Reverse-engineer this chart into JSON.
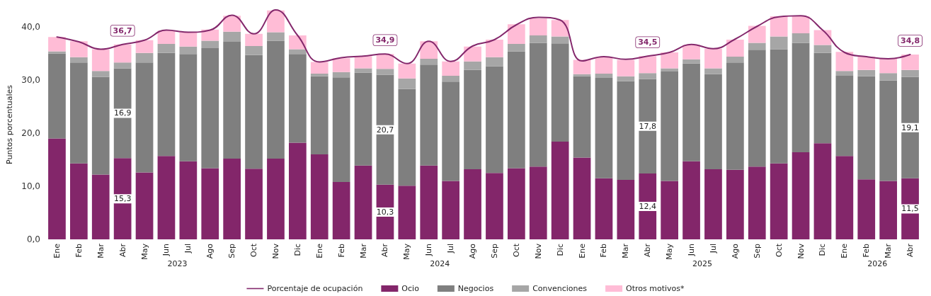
{
  "chart_data": {
    "type": "bar",
    "stacked": true,
    "ylabel": "Puntos porcentuales",
    "categories": [
      "Ene",
      "Feb",
      "Mar",
      "Abr",
      "May",
      "Jun",
      "Jul",
      "Ago",
      "Sep",
      "Oct",
      "Nov",
      "Dic",
      "Ene",
      "Feb",
      "Mar",
      "Abr",
      "May",
      "Jun",
      "Jul",
      "Ago",
      "Sep",
      "Oct",
      "Nov",
      "Dic",
      "Ene",
      "Feb",
      "Mar",
      "Abr",
      "May",
      "Jun",
      "Jul",
      "Ago",
      "Sep",
      "Oct",
      "Nov",
      "Dic",
      "Ene",
      "Feb",
      "Mar",
      "Abr"
    ],
    "series": [
      {
        "name": "Porcentaje de ocupación",
        "type": "line",
        "color": "#84286c",
        "values": [
          38.1,
          37.2,
          35.8,
          36.7,
          37.5,
          39.4,
          39.0,
          39.4,
          42.2,
          38.7,
          43.2,
          38.4,
          33.4,
          34.2,
          34.5,
          34.9,
          33.1,
          37.3,
          33.5,
          36.4,
          37.6,
          40.4,
          41.8,
          41.3,
          33.6,
          34.4,
          33.9,
          34.5,
          35.2,
          36.7,
          35.9,
          37.7,
          40.1,
          41.9,
          42.1,
          39.4,
          35.2,
          34.4,
          34.0,
          34.8
        ],
        "value_labels": [
          null,
          null,
          null,
          "36,7",
          null,
          null,
          null,
          null,
          null,
          null,
          null,
          null,
          null,
          null,
          null,
          "34,9",
          null,
          null,
          null,
          null,
          null,
          null,
          null,
          null,
          null,
          null,
          null,
          "34,5",
          null,
          null,
          null,
          null,
          null,
          null,
          null,
          null,
          null,
          null,
          null,
          "34,8"
        ]
      },
      {
        "name": "Ocio",
        "color": "#83266a",
        "values": [
          19.0,
          14.3,
          12.2,
          15.3,
          12.6,
          15.7,
          14.7,
          13.4,
          15.2,
          13.3,
          15.2,
          18.2,
          16.0,
          10.8,
          13.9,
          10.3,
          10.1,
          13.9,
          11.0,
          13.2,
          12.5,
          13.4,
          13.7,
          18.4,
          15.4,
          11.5,
          11.2,
          12.4,
          11.0,
          14.7,
          13.2,
          13.1,
          13.7,
          14.3,
          16.4,
          18.1,
          15.7,
          11.3,
          11.0,
          11.5
        ],
        "value_labels": [
          null,
          null,
          null,
          "15,3",
          null,
          null,
          null,
          null,
          null,
          null,
          null,
          null,
          null,
          null,
          null,
          "10,3",
          null,
          null,
          null,
          null,
          null,
          null,
          null,
          null,
          null,
          null,
          null,
          "12,4",
          null,
          null,
          null,
          null,
          null,
          null,
          null,
          null,
          null,
          null,
          null,
          "11,5"
        ]
      },
      {
        "name": "Negocios",
        "color": "#7f7f7f",
        "values": [
          16.0,
          19.0,
          18.4,
          16.9,
          20.7,
          19.4,
          20.2,
          22.6,
          22.0,
          21.4,
          22.2,
          16.7,
          14.7,
          19.7,
          17.5,
          20.7,
          18.2,
          19.0,
          18.7,
          18.7,
          20.1,
          22.0,
          23.3,
          18.5,
          15.3,
          18.9,
          18.6,
          17.8,
          20.6,
          18.4,
          17.9,
          20.2,
          22.0,
          21.5,
          20.6,
          17.0,
          15.1,
          19.4,
          18.9,
          19.1
        ],
        "value_labels": [
          null,
          null,
          null,
          "16,9",
          null,
          null,
          null,
          null,
          null,
          null,
          null,
          null,
          null,
          null,
          null,
          "20,7",
          null,
          null,
          null,
          null,
          null,
          null,
          null,
          null,
          null,
          null,
          null,
          "17,8",
          null,
          null,
          null,
          null,
          null,
          null,
          null,
          null,
          null,
          null,
          null,
          "19,1"
        ]
      },
      {
        "name": "Convenciones",
        "color": "#a6a6a6",
        "values": [
          0.4,
          1.0,
          1.1,
          1.1,
          1.8,
          1.7,
          1.4,
          1.4,
          1.9,
          1.7,
          1.6,
          0.9,
          0.5,
          1.0,
          0.8,
          1.1,
          2.0,
          1.1,
          1.1,
          1.6,
          1.7,
          1.4,
          1.4,
          1.3,
          0.4,
          0.8,
          0.9,
          1.1,
          0.6,
          0.8,
          1.1,
          1.1,
          1.3,
          2.4,
          1.8,
          1.5,
          0.9,
          1.2,
          1.4,
          1.3
        ]
      },
      {
        "name": "Otros motivos*",
        "color": "#ffbcd6",
        "values": [
          2.7,
          3.0,
          4.1,
          3.4,
          2.4,
          2.5,
          2.7,
          2.1,
          3.0,
          2.3,
          4.1,
          2.6,
          2.2,
          2.6,
          2.3,
          2.8,
          2.8,
          3.3,
          2.7,
          2.8,
          3.3,
          3.7,
          3.2,
          3.1,
          2.7,
          3.1,
          3.1,
          3.2,
          3.0,
          2.7,
          3.7,
          3.2,
          3.2,
          3.8,
          3.2,
          2.8,
          3.6,
          2.5,
          2.7,
          2.9
        ]
      }
    ],
    "ylim": [
      0,
      43.2
    ],
    "yticks": [
      {
        "value": 0,
        "label": "0,0"
      },
      {
        "value": 10,
        "label": "10,0"
      },
      {
        "value": 20,
        "label": "20,0"
      },
      {
        "value": 30,
        "label": "30,0"
      },
      {
        "value": 40,
        "label": "40,0"
      }
    ],
    "marker": "none",
    "line_style": "solid",
    "grid": false,
    "legend": "bottom",
    "annotations": [
      "2023",
      "2024",
      "2025",
      "2026"
    ]
  }
}
